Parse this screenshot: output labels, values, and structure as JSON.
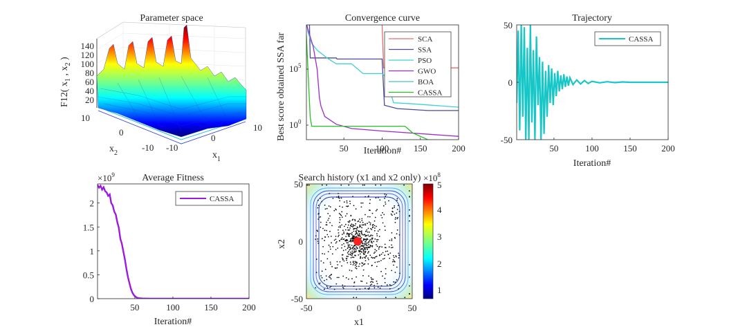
{
  "chart_data": [
    {
      "type": "surface",
      "title": "Parameter space",
      "xlabel": "x",
      "xlabel_sub": "1",
      "ylabel": "x",
      "ylabel_sub": "2",
      "zlabel": "F12( x",
      "zlabel_mid": " , x",
      "zlabel_end": " )",
      "zlabel_sub1": "1",
      "zlabel_sub2": "2",
      "xticks": [
        "-10",
        "0",
        "10"
      ],
      "yticks": [
        "10",
        "0",
        "-10"
      ],
      "zticks": [
        "20",
        "40",
        "60",
        "80",
        "100",
        "120",
        "140"
      ],
      "zlim": [
        0,
        150
      ],
      "colormap": "jet"
    },
    {
      "type": "line",
      "title": "Convergence curve",
      "xlabel": "Iteration#",
      "ylabel": "Best score obtained SSA far",
      "yscale": "log",
      "xlim": [
        1,
        200
      ],
      "xticks": [
        "50",
        "100",
        "150",
        "200"
      ],
      "yticks": [
        {
          "base": "10",
          "exp": "5"
        },
        {
          "base": "10",
          "exp": "0"
        }
      ],
      "legend_position": "top-right",
      "series": [
        {
          "name": "SCA",
          "color": "#e86c6c",
          "x": [
            1,
            5,
            75,
            78,
            100,
            102,
            160,
            200
          ],
          "y": [
            3000000000.0,
            2000000000.0,
            2000000000.0,
            1000000000.0,
            1000000000.0,
            130000.0,
            130000.0,
            130000.0
          ]
        },
        {
          "name": "SSA",
          "color": "#4b4b9a",
          "x": [
            1,
            5,
            6,
            40,
            41,
            70,
            80,
            100,
            103,
            120,
            160,
            200
          ],
          "y": [
            1000000000.0,
            1000000000.0,
            1000000.0,
            1000000.0,
            800000.0,
            800000.0,
            800000.0,
            800000.0,
            60,
            30,
            20,
            20
          ]
        },
        {
          "name": "PSO",
          "color": "#3fd2d2",
          "x": [
            1,
            3,
            8,
            15,
            28,
            40,
            60,
            75,
            82,
            100,
            105,
            115,
            140,
            200
          ],
          "y": [
            3000000000.0,
            200000000.0,
            20000000.0,
            5000000.0,
            1000000.0,
            300000.0,
            300000.0,
            40000.0,
            40000.0,
            40000.0,
            20000.0,
            100,
            80,
            40
          ]
        },
        {
          "name": "GWO",
          "color": "#9b2ccb",
          "x": [
            1,
            10,
            15,
            18,
            20,
            25,
            40,
            60,
            100,
            200
          ],
          "y": [
            1000000000.0,
            10000000.0,
            100000.0,
            300,
            50,
            6,
            1.2,
            0.5,
            0.3,
            0.1
          ]
        },
        {
          "name": "BOA",
          "color": "#4fc0c0",
          "x": [
            1,
            200
          ],
          "y": [
            4000000000.0,
            4000000000.0
          ]
        },
        {
          "name": "CASSA",
          "color": "#22c422",
          "x": [
            1,
            3,
            6,
            8,
            130,
            140,
            160,
            200
          ],
          "y": [
            100000000.0,
            100000.0,
            5,
            0.8,
            0.8,
            0.2,
            0.05,
            0.04
          ]
        }
      ]
    },
    {
      "type": "line",
      "title": "Trajectory",
      "xlabel": "Iteration#",
      "xlim": [
        1,
        200
      ],
      "ylim": [
        -50,
        50
      ],
      "xticks": [
        "50",
        "100",
        "150",
        "200"
      ],
      "yticks": [
        "50",
        "0",
        "-50"
      ],
      "legend_position": "top-right",
      "series": [
        {
          "name": "CASSA",
          "color": "#17c7c7",
          "x": [
            1,
            3,
            5,
            7,
            9,
            11,
            13,
            15,
            17,
            19,
            21,
            23,
            25,
            27,
            29,
            31,
            33,
            35,
            37,
            39,
            41,
            43,
            45,
            47,
            49,
            51,
            53,
            55,
            57,
            59,
            61,
            63,
            65,
            67,
            69,
            71,
            75,
            80,
            85,
            90,
            95,
            100,
            110,
            120,
            130,
            140,
            150,
            170,
            200
          ],
          "y": [
            -18,
            45,
            -42,
            50,
            -30,
            48,
            -50,
            30,
            -50,
            50,
            -35,
            28,
            -50,
            40,
            -20,
            22,
            -50,
            18,
            -45,
            10,
            -30,
            15,
            -18,
            12,
            -20,
            8,
            -12,
            10,
            -8,
            6,
            -6,
            7,
            -4,
            5,
            -3,
            4,
            -2,
            2,
            -1.5,
            1.5,
            -1,
            0.8,
            -0.5,
            0.5,
            -0.3,
            0.3,
            0,
            0,
            0
          ]
        }
      ]
    },
    {
      "type": "line",
      "title": "Average Fitness",
      "xlabel": "Iteration#",
      "y_multiplier": "×10",
      "y_multiplier_exp": "9",
      "xlim": [
        1,
        200
      ],
      "ylim": [
        0,
        2.4
      ],
      "xticks": [
        "50",
        "100",
        "150",
        "200"
      ],
      "yticks": [
        "2",
        "1.5",
        "1",
        "0.5",
        "0"
      ],
      "legend_position": "top-right",
      "series": [
        {
          "name": "CASSA",
          "color": "#9b19e0",
          "x": [
            1,
            3,
            5,
            7,
            9,
            11,
            13,
            15,
            17,
            19,
            21,
            23,
            25,
            27,
            29,
            31,
            33,
            35,
            37,
            39,
            41,
            43,
            45,
            47,
            49,
            51,
            53,
            55,
            60,
            70,
            100,
            150,
            200
          ],
          "y": [
            2.38,
            2.32,
            2.36,
            2.28,
            2.33,
            2.25,
            2.22,
            2.15,
            2.18,
            2.0,
            1.95,
            1.82,
            1.76,
            1.6,
            1.48,
            1.25,
            1.15,
            0.98,
            0.82,
            0.62,
            0.45,
            0.32,
            0.2,
            0.12,
            0.07,
            0.04,
            0.02,
            0.01,
            0.005,
            0,
            0,
            0,
            0
          ]
        }
      ]
    },
    {
      "type": "scatter",
      "title": "Search history (x1 and x2 only)",
      "xlabel": "x1",
      "ylabel": "x2",
      "xlim": [
        -50,
        50
      ],
      "ylim": [
        -50,
        50
      ],
      "xticks": [
        "-50",
        "0",
        "50"
      ],
      "yticks": [
        "50",
        "0",
        "-50"
      ],
      "colorbar": {
        "multiplier": "×10",
        "multiplier_exp": "8",
        "ticks": [
          "5",
          "4",
          "3",
          "2",
          "1"
        ],
        "range": [
          0.7,
          5
        ]
      },
      "points": [
        {
          "name": "best-position",
          "x": 0,
          "y": 0,
          "color": "#ff2020"
        }
      ]
    }
  ]
}
